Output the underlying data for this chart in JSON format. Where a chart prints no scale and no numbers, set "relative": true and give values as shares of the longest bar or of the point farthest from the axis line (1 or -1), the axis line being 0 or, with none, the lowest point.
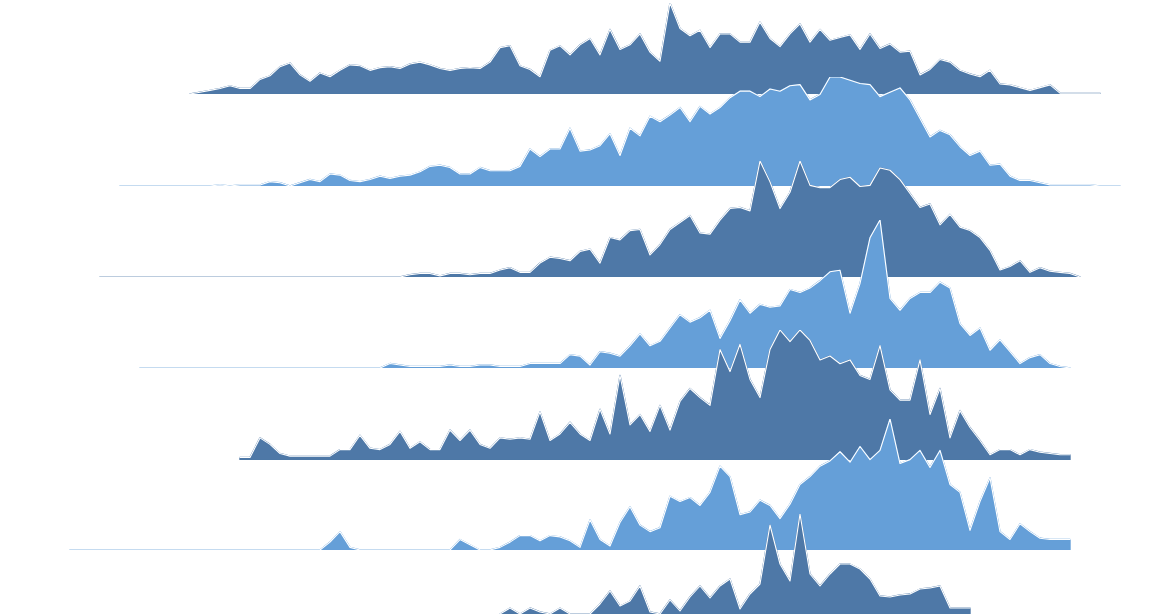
{
  "chart_data": [
    {
      "type": "area",
      "relative": true,
      "color": "#4e78a7",
      "categories": [
        null,
        null,
        null,
        null,
        null,
        null,
        null,
        null,
        null,
        null,
        null,
        null,
        null,
        null,
        null,
        null,
        null,
        null,
        null,
        null,
        null,
        null,
        null,
        null,
        null,
        null,
        null,
        null,
        null,
        null,
        null,
        null,
        null,
        null,
        null,
        null,
        null,
        null,
        null,
        null,
        null,
        null,
        null,
        null,
        null,
        null,
        null,
        null,
        null,
        null,
        null,
        null,
        null,
        null,
        null,
        null,
        null,
        null,
        null,
        null,
        null,
        null,
        null,
        null,
        null,
        null,
        null,
        null,
        null,
        null,
        null,
        null,
        null,
        null,
        null,
        null,
        null,
        null,
        null,
        null,
        null,
        null,
        null,
        null,
        null,
        null,
        null,
        null,
        null,
        null,
        null,
        null,
        null,
        null,
        null,
        null,
        null,
        null,
        null,
        null,
        null,
        null,
        null,
        null,
        null,
        null
      ],
      "values": [
        null,
        null,
        null,
        null,
        null,
        null,
        null,
        null,
        null,
        null,
        null,
        null,
        0,
        0.02,
        0.04,
        0.06,
        0.09,
        0.06,
        0.06,
        0.16,
        0.2,
        0.3,
        0.34,
        0.21,
        0.14,
        0.23,
        0.19,
        0.26,
        0.32,
        0.31,
        0.26,
        0.29,
        0.3,
        0.28,
        0.33,
        0.35,
        0.32,
        0.28,
        0.26,
        0.28,
        0.29,
        0.28,
        0.35,
        0.51,
        0.53,
        0.31,
        0.27,
        0.19,
        0.48,
        0.53,
        0.43,
        0.54,
        0.61,
        0.43,
        0.71,
        0.49,
        0.54,
        0.66,
        0.46,
        0.36,
        1,
        0.72,
        0.64,
        0.7,
        0.51,
        0.66,
        0.66,
        0.57,
        0.57,
        0.79,
        0.61,
        0.52,
        0.66,
        0.77,
        0.57,
        0.71,
        0.59,
        0.62,
        0.65,
        0.49,
        0.66,
        0.5,
        0.55,
        0.46,
        0.47,
        0.21,
        0.27,
        0.38,
        0.35,
        0.26,
        0.22,
        0.19,
        0.26,
        0.11,
        0.1,
        0.07,
        0.04,
        0.07,
        0.1,
        0.01,
        0.01,
        0.01,
        0.01,
        0.01,
        null,
        null
      ]
    },
    {
      "type": "area",
      "relative": true,
      "color": "#659fd8",
      "categories": [
        null,
        null,
        null,
        null,
        null,
        null,
        null,
        null,
        null,
        null,
        null,
        null,
        null,
        null,
        null,
        null,
        null,
        null,
        null,
        null,
        null,
        null,
        null,
        null,
        null,
        null,
        null,
        null,
        null,
        null,
        null,
        null,
        null,
        null,
        null,
        null,
        null,
        null,
        null,
        null,
        null,
        null,
        null,
        null,
        null,
        null,
        null,
        null,
        null,
        null,
        null,
        null,
        null,
        null,
        null,
        null,
        null,
        null,
        null,
        null,
        null,
        null,
        null,
        null,
        null,
        null,
        null,
        null,
        null,
        null,
        null,
        null,
        null,
        null,
        null,
        null,
        null,
        null,
        null,
        null,
        null,
        null,
        null,
        null,
        null,
        null,
        null,
        null,
        null,
        null,
        null,
        null,
        null,
        null,
        null,
        null,
        null,
        null,
        null,
        null,
        null,
        null,
        null,
        null,
        null,
        null
      ],
      "values": [
        null,
        null,
        null,
        null,
        null,
        0,
        0,
        0,
        0,
        0,
        0,
        0,
        0,
        0,
        0,
        0.01,
        0,
        0.01,
        0.01,
        0.01,
        0.04,
        0.03,
        0,
        0.03,
        0.06,
        0.04,
        0.11,
        0.1,
        0.05,
        0.04,
        0.06,
        0.09,
        0.07,
        0.09,
        0.1,
        0.13,
        0.18,
        0.19,
        0.17,
        0.11,
        0.11,
        0.17,
        0.14,
        0.14,
        0.14,
        0.18,
        0.34,
        0.27,
        0.34,
        0.34,
        0.53,
        0.32,
        0.33,
        0.37,
        0.48,
        0.28,
        0.53,
        0.46,
        0.64,
        0.59,
        0.65,
        0.72,
        0.59,
        0.73,
        0.66,
        0.72,
        0.81,
        0.87,
        0.87,
        0.82,
        0.89,
        0.87,
        0.92,
        0.93,
        0.79,
        0.84,
        1,
        1,
        0.97,
        0.94,
        0.93,
        0.82,
        0.86,
        0.9,
        0.79,
        0.62,
        0.45,
        0.51,
        0.47,
        0.36,
        0.28,
        0.32,
        0.19,
        0.2,
        0.09,
        0.05,
        0.05,
        0.03,
        0.01,
        0.01,
        0.01,
        0.01,
        0.01,
        0,
        0,
        0
      ]
    },
    {
      "type": "area",
      "relative": true,
      "color": "#4e78a7",
      "categories": [
        null,
        null,
        null,
        null,
        null,
        null,
        null,
        null,
        null,
        null,
        null,
        null,
        null,
        null,
        null,
        null,
        null,
        null,
        null,
        null,
        null,
        null,
        null,
        null,
        null,
        null,
        null,
        null,
        null,
        null,
        null,
        null,
        null,
        null,
        null,
        null,
        null,
        null,
        null,
        null,
        null,
        null,
        null,
        null,
        null,
        null,
        null,
        null,
        null,
        null,
        null,
        null,
        null,
        null,
        null,
        null,
        null,
        null,
        null,
        null,
        null,
        null,
        null,
        null,
        null,
        null,
        null,
        null,
        null,
        null,
        null,
        null,
        null,
        null,
        null,
        null,
        null,
        null,
        null,
        null,
        null,
        null,
        null,
        null,
        null,
        null,
        null,
        null,
        null,
        null,
        null,
        null,
        null,
        null,
        null,
        null,
        null,
        null,
        null,
        null,
        null,
        null,
        null,
        null,
        null,
        null
      ],
      "values": [
        null,
        null,
        null,
        0,
        0,
        0,
        0,
        0,
        0,
        0,
        0,
        0,
        0,
        0,
        0,
        0,
        0,
        0,
        0,
        0,
        0,
        0,
        0,
        0,
        0,
        0,
        0,
        0,
        0,
        0,
        0,
        0,
        0,
        0,
        0.02,
        0.03,
        0.03,
        0.01,
        0.03,
        0.03,
        0.02,
        0.03,
        0.03,
        0.06,
        0.08,
        0.04,
        0.04,
        0.12,
        0.17,
        0.16,
        0.14,
        0.22,
        0.24,
        0.12,
        0.34,
        0.32,
        0.4,
        0.41,
        0.19,
        0.28,
        0.41,
        0.47,
        0.53,
        0.38,
        0.37,
        0.49,
        0.59,
        0.6,
        0.57,
        1,
        0.82,
        0.59,
        0.73,
        1,
        0.79,
        0.77,
        0.77,
        0.84,
        0.86,
        0.78,
        0.79,
        0.94,
        0.92,
        0.84,
        0.72,
        0.6,
        0.63,
        0.45,
        0.54,
        0.43,
        0.4,
        0.34,
        0.23,
        0.06,
        0.09,
        0.14,
        0.04,
        0.08,
        0.05,
        0.04,
        0.03,
        0,
        null,
        null,
        null,
        null
      ]
    },
    {
      "type": "area",
      "relative": true,
      "color": "#659fd8",
      "categories": [
        null,
        null,
        null,
        null,
        null,
        null,
        null,
        null,
        null,
        null,
        null,
        null,
        null,
        null,
        null,
        null,
        null,
        null,
        null,
        null,
        null,
        null,
        null,
        null,
        null,
        null,
        null,
        null,
        null,
        null,
        null,
        null,
        null,
        null,
        null,
        null,
        null,
        null,
        null,
        null,
        null,
        null,
        null,
        null,
        null,
        null,
        null,
        null,
        null,
        null,
        null,
        null,
        null,
        null,
        null,
        null,
        null,
        null,
        null,
        null,
        null,
        null,
        null,
        null,
        null,
        null,
        null,
        null,
        null,
        null,
        null,
        null,
        null,
        null,
        null,
        null,
        null,
        null,
        null,
        null,
        null,
        null,
        null,
        null,
        null,
        null,
        null,
        null,
        null,
        null,
        null,
        null,
        null,
        null,
        null,
        null,
        null,
        null,
        null,
        null,
        null,
        null,
        null,
        null,
        null,
        null
      ],
      "values": [
        null,
        null,
        null,
        null,
        null,
        null,
        null,
        0,
        0,
        0,
        0,
        0,
        0,
        0,
        0,
        0,
        0,
        0,
        0,
        0,
        0,
        0,
        0,
        0,
        0,
        0,
        0,
        0,
        0,
        0,
        0,
        0,
        0.03,
        0.02,
        0.01,
        0.01,
        0.01,
        0.01,
        0.02,
        0.01,
        0.01,
        0.02,
        0.02,
        0.01,
        0.01,
        0.01,
        0.03,
        0.03,
        0.03,
        0.03,
        0.09,
        0.08,
        0.02,
        0.11,
        0.1,
        0.08,
        0.15,
        0.23,
        0.15,
        0.18,
        0.27,
        0.36,
        0.31,
        0.34,
        0.39,
        0.2,
        0.32,
        0.46,
        0.37,
        0.43,
        0.41,
        0.42,
        0.53,
        0.51,
        0.54,
        0.59,
        0.65,
        0.66,
        0.37,
        0.57,
        0.88,
        1,
        0.47,
        0.39,
        0.47,
        0.51,
        0.51,
        0.58,
        0.54,
        0.3,
        0.22,
        0.27,
        0.12,
        0.19,
        0.11,
        0.03,
        0.07,
        0.09,
        0.03,
        0.01,
        0,
        null,
        null,
        null,
        null,
        null
      ]
    },
    {
      "type": "area",
      "relative": true,
      "color": "#4e78a7",
      "categories": [
        null,
        null,
        null,
        null,
        null,
        null,
        null,
        null,
        null,
        null,
        null,
        null,
        null,
        null,
        null,
        null,
        null,
        null,
        null,
        null,
        null,
        null,
        null,
        null,
        null,
        null,
        null,
        null,
        null,
        null,
        null,
        null,
        null,
        null,
        null,
        null,
        null,
        null,
        null,
        null,
        null,
        null,
        null,
        null,
        null,
        null,
        null,
        null,
        null,
        null,
        null,
        null,
        null,
        null,
        null,
        null,
        null,
        null,
        null,
        null,
        null,
        null,
        null,
        null,
        null,
        null,
        null,
        null,
        null,
        null,
        null,
        null,
        null,
        null,
        null,
        null,
        null,
        null,
        null,
        null,
        null,
        null,
        null,
        null,
        null,
        null,
        null,
        null,
        null,
        null,
        null,
        null,
        null,
        null,
        null,
        null,
        null,
        null,
        null,
        null,
        null,
        null,
        null,
        null,
        null,
        null
      ],
      "values": [
        null,
        null,
        null,
        null,
        null,
        null,
        null,
        null,
        null,
        null,
        null,
        null,
        null,
        null,
        null,
        null,
        null,
        0.02,
        0.02,
        0.17,
        0.12,
        0.05,
        0.03,
        0.03,
        0.03,
        0.03,
        0.03,
        0.08,
        0.08,
        0.19,
        0.09,
        0.08,
        0.12,
        0.22,
        0.09,
        0.14,
        0.08,
        0.08,
        0.23,
        0.15,
        0.23,
        0.12,
        0.09,
        0.17,
        0.16,
        0.17,
        0.16,
        0.37,
        0.15,
        0.2,
        0.29,
        0.2,
        0.15,
        0.39,
        0.2,
        0.65,
        0.27,
        0.35,
        0.22,
        0.42,
        0.23,
        0.45,
        0.55,
        0.48,
        0.42,
        0.85,
        0.68,
        0.89,
        0.62,
        0.48,
        0.85,
        1,
        0.91,
        1,
        0.92,
        0.77,
        0.8,
        0.74,
        0.77,
        0.65,
        0.62,
        0.88,
        0.54,
        0.46,
        0.46,
        0.77,
        0.35,
        0.55,
        0.17,
        0.38,
        0.25,
        0.15,
        0.04,
        0.08,
        0.08,
        0.04,
        0.08,
        0.06,
        0.05,
        0.04,
        0.04,
        null,
        null,
        null,
        null,
        null
      ]
    },
    {
      "type": "area",
      "relative": true,
      "color": "#659fd8",
      "categories": [
        null,
        null,
        null,
        null,
        null,
        null,
        null,
        null,
        null,
        null,
        null,
        null,
        null,
        null,
        null,
        null,
        null,
        null,
        null,
        null,
        null,
        null,
        null,
        null,
        null,
        null,
        null,
        null,
        null,
        null,
        null,
        null,
        null,
        null,
        null,
        null,
        null,
        null,
        null,
        null,
        null,
        null,
        null,
        null,
        null,
        null,
        null,
        null,
        null,
        null,
        null,
        null,
        null,
        null,
        null,
        null,
        null,
        null,
        null,
        null,
        null,
        null,
        null,
        null,
        null,
        null,
        null,
        null,
        null,
        null,
        null,
        null,
        null,
        null,
        null,
        null,
        null,
        null,
        null,
        null,
        null,
        null,
        null,
        null,
        null,
        null,
        null,
        null,
        null,
        null,
        null,
        null,
        null,
        null,
        null,
        null,
        null,
        null,
        null,
        null,
        null,
        null,
        null,
        null,
        null,
        null
      ],
      "values": [
        0,
        0,
        0,
        0,
        0,
        0,
        0,
        0,
        0,
        0,
        0,
        0,
        0,
        0,
        0,
        0,
        0,
        0,
        0,
        0,
        0,
        0,
        0,
        0,
        0,
        0,
        0.06,
        0.14,
        0.02,
        0,
        0,
        0,
        0,
        0,
        0,
        0,
        0,
        0,
        0,
        0.08,
        0.04,
        0,
        0,
        0.02,
        0.06,
        0.11,
        0.11,
        0.07,
        0.11,
        0.1,
        0.07,
        0.02,
        0.23,
        0.08,
        0.03,
        0.21,
        0.33,
        0.19,
        0.14,
        0.17,
        0.41,
        0.37,
        0.4,
        0.34,
        0.44,
        0.64,
        0.56,
        0.27,
        0.29,
        0.38,
        0.34,
        0.24,
        0.35,
        0.5,
        0.56,
        0.64,
        0.68,
        0.75,
        0.67,
        0.79,
        0.69,
        0.76,
        1,
        0.66,
        0.69,
        0.76,
        0.63,
        0.76,
        0.5,
        0.44,
        0.15,
        0.37,
        0.55,
        0.14,
        0.08,
        0.2,
        0.14,
        0.09,
        0.08,
        0.08,
        0.08,
        null,
        null,
        null,
        null,
        null
      ]
    },
    {
      "type": "area",
      "relative": true,
      "color": "#4e78a7",
      "categories": [
        null,
        null,
        null,
        null,
        null,
        null,
        null,
        null,
        null,
        null,
        null,
        null,
        null,
        null,
        null,
        null,
        null,
        null,
        null,
        null,
        null,
        null,
        null,
        null,
        null,
        null,
        null,
        null,
        null,
        null,
        null,
        null,
        null,
        null,
        null,
        null,
        null,
        null,
        null,
        null,
        null,
        null,
        null,
        null,
        null,
        null,
        null,
        null,
        null,
        null,
        null,
        null,
        null,
        null,
        null,
        null,
        null,
        null,
        null,
        null,
        null,
        null,
        null,
        null,
        null,
        null,
        null,
        null,
        null,
        null,
        null,
        null,
        null,
        null,
        null,
        null,
        null,
        null,
        null,
        null,
        null,
        null,
        null,
        null,
        null,
        null,
        null,
        null,
        null,
        null,
        null,
        null,
        null,
        null,
        null,
        null,
        null,
        null,
        null,
        null,
        null,
        null,
        null,
        null,
        null,
        null
      ],
      "values": [
        null,
        null,
        null,
        null,
        null,
        null,
        null,
        null,
        null,
        null,
        null,
        null,
        null,
        null,
        null,
        null,
        null,
        null,
        null,
        null,
        null,
        null,
        null,
        null,
        null,
        null,
        null,
        null,
        null,
        null,
        null,
        null,
        null,
        null,
        null,
        null,
        null,
        null,
        null,
        null,
        null,
        null,
        null,
        0,
        0.06,
        0,
        0.06,
        0.02,
        0,
        0.06,
        0,
        0,
        0,
        0.1,
        0.23,
        0.08,
        0.13,
        0.28,
        0.02,
        0,
        0.14,
        0.03,
        0.17,
        0.28,
        0.16,
        0.28,
        0.35,
        0.05,
        0.2,
        0.3,
        0.89,
        0.5,
        0.33,
        1,
        0.4,
        0.28,
        0.4,
        0.5,
        0.5,
        0.45,
        0.35,
        0.18,
        0.17,
        0.19,
        0.2,
        0.25,
        0.26,
        0.28,
        0.06,
        0.06,
        0.06,
        null,
        null,
        null,
        null,
        null,
        null,
        null,
        null,
        null,
        null,
        null,
        null,
        null,
        null,
        null
      ]
    }
  ]
}
